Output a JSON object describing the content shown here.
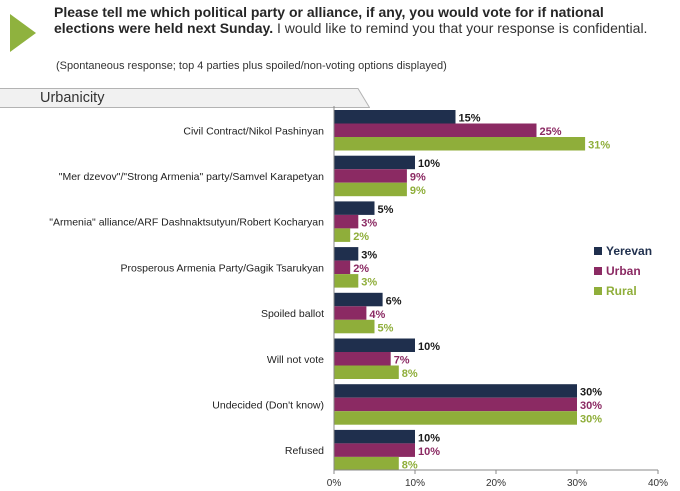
{
  "header": {
    "question_bold": "Please tell me which political party or alliance, if any, you would vote for if national elections were held next Sunday.",
    "question_rest": "I would like to remind you that your response is confidential.",
    "note": "(Spontaneous response; top 4 parties plus spoiled/non-voting options displayed)",
    "tab_label": "Urbanicity"
  },
  "colors": {
    "yerevan": "#1f2f4d",
    "urban": "#8b2a63",
    "rural": "#8fae3a",
    "tab_fill": "#f1f1f1",
    "tab_border": "#b3b3b3",
    "accent_arrow": "#8fb23e"
  },
  "chart_data": {
    "type": "bar",
    "orientation": "horizontal",
    "categories": [
      "Civil Contract/Nikol Pashinyan",
      "\"Mer dzevov\"/\"Strong Armenia\" party/Samvel Karapetyan",
      "\"Armenia\" alliance/ARF Dashnaktsutyun/Robert Kocharyan",
      "Prosperous Armenia Party/Gagik Tsarukyan",
      "Spoiled ballot",
      "Will not vote",
      "Undecided (Don't know)",
      "Refused"
    ],
    "series": [
      {
        "name": "Yerevan",
        "values": [
          15,
          10,
          5,
          3,
          6,
          10,
          30,
          10
        ],
        "labels": [
          "15%",
          "10%",
          "5%",
          "3%",
          "6%",
          "10%",
          "30%",
          "10%"
        ]
      },
      {
        "name": "Urban",
        "values": [
          25,
          9,
          3,
          2,
          4,
          7,
          30,
          10
        ],
        "labels": [
          "25%",
          "9%",
          "3%",
          "2%",
          "4%",
          "7%",
          "30%",
          "10%"
        ]
      },
      {
        "name": "Rural",
        "values": [
          31,
          9,
          2,
          3,
          5,
          8,
          30,
          8
        ],
        "labels": [
          "31%",
          "9%",
          "2%",
          "3%",
          "5%",
          "8%",
          "30%",
          "8%"
        ]
      }
    ],
    "xlim": [
      0,
      40
    ],
    "xticks": [
      "0%",
      "10%",
      "20%",
      "30%",
      "40%"
    ],
    "legend_position": "right",
    "grid": false
  }
}
